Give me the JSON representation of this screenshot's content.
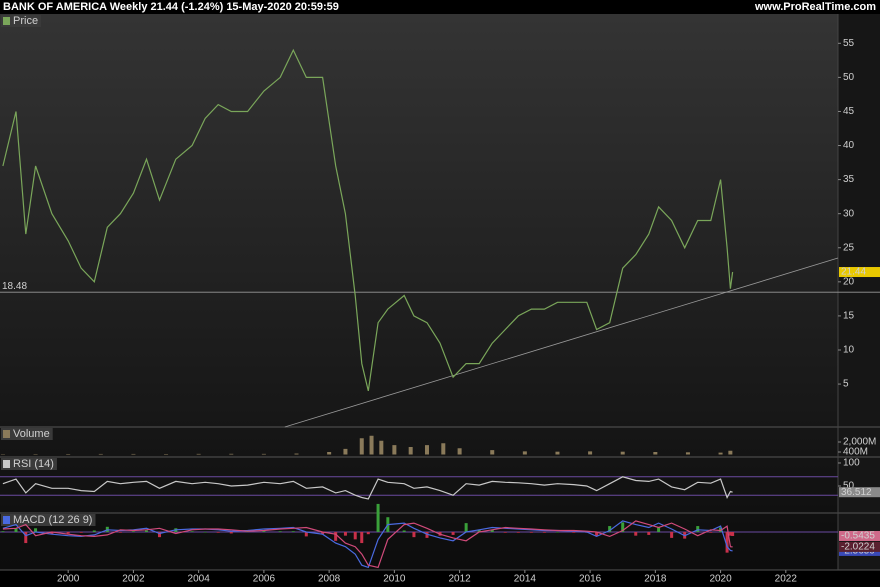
{
  "header": {
    "title": "BANK OF AMERICA Weekly 21.44 (-1.24%) 15-May-2020 20:59:59",
    "site": "www.ProRealTime.com"
  },
  "chart_data": [
    {
      "type": "line",
      "title": "Price",
      "x": [
        1998.0,
        1998.4,
        1998.7,
        1999.0,
        1999.5,
        2000.0,
        2000.4,
        2000.8,
        2001.2,
        2001.6,
        2002.0,
        2002.4,
        2002.8,
        2003.3,
        2003.8,
        2004.2,
        2004.6,
        2005.0,
        2005.5,
        2006.0,
        2006.5,
        2006.9,
        2007.3,
        2007.8,
        2008.2,
        2008.5,
        2008.8,
        2009.0,
        2009.2,
        2009.5,
        2009.8,
        2010.3,
        2010.6,
        2011.0,
        2011.4,
        2011.8,
        2012.2,
        2012.6,
        2013.0,
        2013.4,
        2013.8,
        2014.2,
        2014.6,
        2015.0,
        2015.5,
        2015.9,
        2016.2,
        2016.6,
        2017.0,
        2017.4,
        2017.8,
        2018.1,
        2018.5,
        2018.9,
        2019.3,
        2019.7,
        2020.0,
        2020.2,
        2020.3,
        2020.37
      ],
      "series": [
        {
          "name": "Price",
          "color": "#7aa65a",
          "tag_color": "#e8c800",
          "tag_text_color": "#000000",
          "values": [
            37,
            45,
            27,
            37,
            30,
            26,
            22,
            20,
            28,
            30,
            33,
            38,
            32,
            38,
            40,
            44,
            46,
            45,
            45,
            48,
            50,
            54,
            50,
            50,
            37,
            30,
            18,
            8,
            4,
            14,
            16,
            18,
            15,
            14,
            11,
            6,
            8,
            8,
            11,
            13,
            15,
            16,
            16,
            17,
            17,
            17,
            13,
            14,
            22,
            24,
            27,
            31,
            29,
            25,
            29,
            29,
            35,
            25,
            19,
            21.44
          ]
        }
      ],
      "xlim": [
        1997.91,
        2023.6
      ],
      "ylim": [
        -1.3,
        59.3
      ],
      "yticks": [
        5,
        10,
        15,
        20,
        25,
        30,
        35,
        40,
        45,
        50,
        55
      ],
      "hline": 18.48,
      "trendline": {
        "x": [
          2006.64,
          2023.6
        ],
        "values": [
          -1.3,
          23.5
        ]
      },
      "line_color": "#9a9a9a"
    },
    {
      "type": "bar",
      "title": "Volume",
      "x": [
        1998,
        1999,
        2000,
        2001,
        2002,
        2003,
        2004,
        2005,
        2006,
        2007,
        2008,
        2008.5,
        2009,
        2009.3,
        2009.6,
        2010,
        2010.5,
        2011,
        2011.5,
        2012,
        2013,
        2014,
        2015,
        2016,
        2017,
        2018,
        2019,
        2020,
        2020.3
      ],
      "values": [
        60,
        70,
        80,
        90,
        90,
        80,
        100,
        110,
        100,
        150,
        400,
        900,
        2600,
        3000,
        2200,
        1500,
        1200,
        1500,
        1800,
        1000,
        700,
        500,
        450,
        500,
        450,
        400,
        350,
        300,
        600
      ],
      "color": "#8a7a5a",
      "xlim": [
        1997.91,
        2023.6
      ],
      "ylim": [
        -400,
        4400
      ],
      "yticks": [
        {
          "value": 2000,
          "label": "2,000M"
        },
        {
          "value": 400,
          "label": "400M"
        }
      ]
    },
    {
      "type": "line",
      "title": "RSI (14)",
      "x": [
        1998.0,
        1998.4,
        1998.7,
        1999.0,
        1999.5,
        2000.0,
        2000.4,
        2000.8,
        2001.2,
        2001.6,
        2002.0,
        2002.4,
        2002.8,
        2003.3,
        2003.8,
        2004.2,
        2004.6,
        2005.0,
        2005.5,
        2006.0,
        2006.5,
        2006.9,
        2007.3,
        2007.8,
        2008.2,
        2008.5,
        2008.8,
        2009.0,
        2009.2,
        2009.5,
        2009.8,
        2010.3,
        2010.6,
        2011.0,
        2011.4,
        2011.8,
        2012.2,
        2012.6,
        2013.0,
        2013.4,
        2013.8,
        2014.2,
        2014.6,
        2015.0,
        2015.5,
        2015.9,
        2016.2,
        2016.6,
        2017.0,
        2017.4,
        2017.8,
        2018.1,
        2018.5,
        2018.9,
        2019.3,
        2019.7,
        2020.0,
        2020.2,
        2020.3,
        2020.37
      ],
      "series": [
        {
          "name": "RSI (14)",
          "color": "#c8c8c8",
          "tag_color": "#8a8a8a",
          "tag_text_color": "#ffffff",
          "values": [
            55,
            65,
            35,
            55,
            45,
            45,
            40,
            38,
            60,
            55,
            58,
            60,
            45,
            60,
            55,
            58,
            55,
            50,
            52,
            58,
            55,
            60,
            45,
            48,
            35,
            40,
            30,
            25,
            22,
            65,
            58,
            55,
            45,
            48,
            40,
            30,
            55,
            52,
            60,
            58,
            57,
            55,
            52,
            55,
            53,
            50,
            40,
            55,
            70,
            62,
            60,
            65,
            48,
            42,
            58,
            56,
            65,
            25,
            38,
            36.512
          ]
        }
      ],
      "xlim": [
        1997.91,
        2023.6
      ],
      "ylim": [
        -8.7,
        113
      ],
      "yticks": [
        100,
        50
      ],
      "levels": [
        70,
        30
      ],
      "line_color": "#6a4aa0"
    },
    {
      "type": "line",
      "title": "MACD (12 26 9)",
      "x": [
        1998.0,
        1998.4,
        1998.7,
        1999.0,
        1999.5,
        2000.0,
        2000.4,
        2000.8,
        2001.2,
        2001.6,
        2002.0,
        2002.4,
        2002.8,
        2003.3,
        2003.8,
        2004.2,
        2004.6,
        2005.0,
        2005.5,
        2006.0,
        2006.5,
        2006.9,
        2007.3,
        2007.8,
        2008.2,
        2008.5,
        2008.8,
        2009.0,
        2009.2,
        2009.5,
        2009.8,
        2010.3,
        2010.6,
        2011.0,
        2011.4,
        2011.8,
        2012.2,
        2012.6,
        2013.0,
        2013.4,
        2013.8,
        2014.2,
        2014.6,
        2015.0,
        2015.5,
        2015.9,
        2016.2,
        2016.6,
        2017.0,
        2017.4,
        2017.8,
        2018.1,
        2018.5,
        2018.9,
        2019.3,
        2019.7,
        2020.0,
        2020.2,
        2020.3,
        2020.37
      ],
      "series": [
        {
          "color": "#4a6ae0",
          "tag_color": "#3a4ab8",
          "tag_text_color": "#ffffff",
          "values": [
            0.5,
            1,
            -0.5,
            0,
            -0.3,
            -0.5,
            -0.6,
            -0.4,
            0.3,
            0.2,
            0.3,
            0.5,
            -0.2,
            0.3,
            0.4,
            0.4,
            0.3,
            0.1,
            0.2,
            0.4,
            0.5,
            0.6,
            0,
            -0.3,
            -1.5,
            -2,
            -3,
            -4.5,
            -4.8,
            -1,
            1,
            1.2,
            0.5,
            -0.3,
            -0.8,
            -1.2,
            0,
            0.3,
            0.6,
            0.5,
            0.4,
            0.3,
            0.2,
            0.2,
            0.1,
            0,
            -0.6,
            0.2,
            1.5,
            1,
            0.6,
            1.2,
            0.4,
            -0.5,
            0.3,
            0.2,
            0.8,
            -2,
            -2.5,
            -2.5659
          ]
        },
        {
          "color": "#d04a7a",
          "tag_color": "#5a2030",
          "tag_text_color": "#ffffff",
          "values": [
            0.4,
            0.5,
            1,
            -0.5,
            0,
            -0.3,
            -0.5,
            -0.6,
            -0.4,
            0.3,
            0.2,
            0.3,
            0.5,
            -0.2,
            0.3,
            0.4,
            0.4,
            0.3,
            0.1,
            0.2,
            0.4,
            0.5,
            0.6,
            0,
            -0.3,
            -1.5,
            -2,
            -3,
            -4.5,
            -4.8,
            -1,
            1,
            1.2,
            0.5,
            -0.3,
            -0.8,
            -1.2,
            0,
            0.3,
            0.6,
            0.5,
            0.4,
            0.3,
            0.2,
            0.2,
            0.1,
            0,
            -0.6,
            0.2,
            1.5,
            1,
            0.6,
            1.2,
            0.4,
            -0.5,
            0.3,
            0.2,
            0.8,
            -2,
            -2.0224
          ]
        }
      ],
      "histogram": {
        "up_color": "#3aa03a",
        "down_color": "#c8304a",
        "tag_color": "#d06a8a",
        "tag_text_color": "#000000",
        "values": [
          0.1,
          0.5,
          -1.5,
          0.5,
          -0.3,
          -0.2,
          -0.1,
          0.2,
          0.7,
          -0.1,
          0.1,
          0.2,
          -0.7,
          0.5,
          0.1,
          0,
          -0.1,
          -0.2,
          0.1,
          0.2,
          0.1,
          0.1,
          -0.6,
          -0.3,
          -1.2,
          -0.5,
          -1,
          -1.5,
          -0.3,
          3.8,
          2,
          0.2,
          -0.7,
          -0.8,
          -0.5,
          -0.4,
          1.2,
          0.3,
          0.3,
          -0.1,
          -0.1,
          -0.1,
          -0.1,
          0,
          -0.1,
          -0.1,
          -0.6,
          0.8,
          1.3,
          -0.5,
          -0.4,
          0.6,
          -0.8,
          -0.9,
          0.8,
          -0.1,
          0.6,
          -2.8,
          -0.5,
          -0.5435
        ]
      },
      "zero_line": 0,
      "line_color": "#6a4aa0",
      "xlim": [
        1997.91,
        2023.6
      ],
      "ylim": [
        -5.15,
        2.57
      ],
      "xticks": [
        2000,
        2002,
        2004,
        2006,
        2008,
        2010,
        2012,
        2014,
        2016,
        2018,
        2020,
        2022
      ]
    }
  ]
}
